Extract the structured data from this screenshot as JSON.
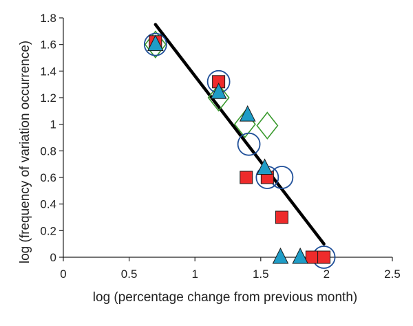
{
  "chart_data": {
    "type": "scatter",
    "title": "",
    "xlabel": "log (percentage change from previous month)",
    "ylabel": "log (frequency of variation occurrence)",
    "xlim": [
      0,
      2.5
    ],
    "ylim": [
      0,
      1.8
    ],
    "x_ticks": [
      0,
      0.5,
      1,
      1.5,
      2,
      2.5
    ],
    "x_tick_labels": [
      "0",
      "0.5",
      "1",
      "1.5",
      "2",
      "2.5"
    ],
    "y_ticks": [
      0,
      0.2,
      0.4,
      0.6,
      0.8,
      1,
      1.2,
      1.4,
      1.6,
      1.8
    ],
    "y_tick_labels": [
      "0",
      "0.2",
      "0.4",
      "0.6",
      "0.8",
      "1",
      "1.2",
      "1.4",
      "1.6",
      "1.8"
    ],
    "grid": false,
    "legend": "none",
    "series": [
      {
        "marker": "diamond",
        "color": "#3a9a2e",
        "fill": "none",
        "points": [
          [
            0.7,
            1.6
          ],
          [
            1.18,
            1.2
          ],
          [
            1.38,
            1.0
          ],
          [
            1.55,
            0.99
          ]
        ]
      },
      {
        "marker": "circle",
        "color": "#1f4f99",
        "fill": "none",
        "points": [
          [
            0.7,
            1.6
          ],
          [
            1.18,
            1.32
          ],
          [
            1.41,
            0.85
          ],
          [
            1.55,
            0.6
          ],
          [
            1.66,
            0.6
          ],
          [
            1.98,
            0.0
          ]
        ]
      },
      {
        "marker": "square",
        "color": "#1a1a1a",
        "fill": "#ee2b2b",
        "points": [
          [
            0.7,
            1.62
          ],
          [
            1.18,
            1.32
          ],
          [
            1.39,
            0.6
          ],
          [
            1.55,
            0.6
          ],
          [
            1.66,
            0.3
          ],
          [
            1.89,
            0.0
          ],
          [
            1.98,
            0.0
          ]
        ]
      },
      {
        "marker": "triangle",
        "color": "#1a1a1a",
        "fill": "#1f9dc7",
        "points": [
          [
            0.7,
            1.6
          ],
          [
            1.18,
            1.24
          ],
          [
            1.4,
            1.07
          ],
          [
            1.53,
            0.67
          ],
          [
            1.65,
            0.0
          ],
          [
            1.8,
            0.0
          ]
        ]
      }
    ],
    "trendline": {
      "color": "#000000",
      "from": [
        0.7,
        1.75
      ],
      "to": [
        1.98,
        0.1
      ]
    }
  }
}
